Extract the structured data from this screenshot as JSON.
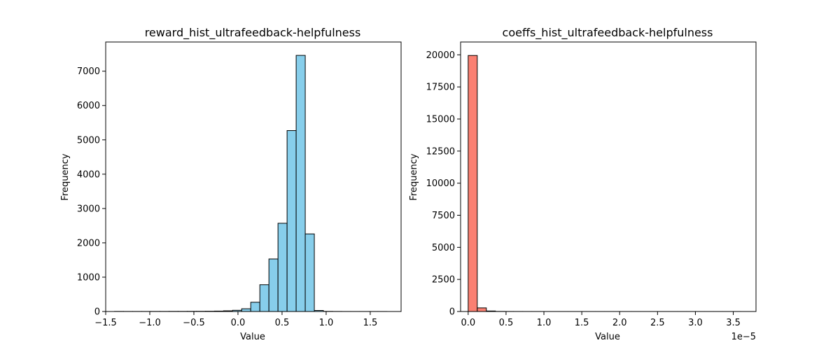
{
  "chart_data": [
    {
      "type": "bar",
      "title": "reward_hist_ultrafeedback-helpfulness",
      "xlabel": "Value",
      "ylabel": "Frequency",
      "bar_color": "#87ceeb",
      "edge_color": "#000000",
      "xlim": [
        -1.5,
        1.85
      ],
      "ylim": [
        0,
        7850
      ],
      "xticks": [
        -1.5,
        -1.0,
        -0.5,
        0.0,
        0.5,
        1.0,
        1.5
      ],
      "xtick_labels": [
        "−1.5",
        "−1.0",
        "−0.5",
        "0.0",
        "0.5",
        "1.0",
        "1.5"
      ],
      "yticks": [
        0,
        1000,
        2000,
        3000,
        4000,
        5000,
        6000,
        7000
      ],
      "ytick_labels": [
        "0",
        "1000",
        "2000",
        "3000",
        "4000",
        "5000",
        "6000",
        "7000"
      ],
      "bin_edges": [
        -1.4,
        -1.297,
        -1.194,
        -1.091,
        -0.988,
        -0.885,
        -0.782,
        -0.679,
        -0.576,
        -0.473,
        -0.37,
        -0.267,
        -0.164,
        -0.061,
        0.042,
        0.145,
        0.248,
        0.351,
        0.454,
        0.557,
        0.66,
        0.763,
        0.866,
        0.969,
        1.072,
        1.175,
        1.278,
        1.381,
        1.484,
        1.587,
        1.69
      ],
      "values": [
        3,
        2,
        2,
        2,
        3,
        3,
        4,
        4,
        5,
        6,
        8,
        12,
        20,
        35,
        80,
        270,
        780,
        1530,
        2570,
        5270,
        7460,
        2260,
        30,
        4,
        2,
        1,
        1,
        1,
        1,
        1
      ]
    },
    {
      "type": "bar",
      "title": "coeffs_hist_ultrafeedback-helpfulness",
      "xlabel": "Value",
      "ylabel": "Frequency",
      "x_offset_label": "1e−5",
      "bar_color": "#fa8072",
      "edge_color": "#000000",
      "xlim": [
        -0.1,
        3.8
      ],
      "ylim": [
        0,
        21000
      ],
      "xticks": [
        0.0,
        0.5,
        1.0,
        1.5,
        2.0,
        2.5,
        3.0,
        3.5
      ],
      "xtick_labels": [
        "0.0",
        "0.5",
        "1.0",
        "1.5",
        "2.0",
        "2.5",
        "3.0",
        "3.5"
      ],
      "yticks": [
        0,
        2500,
        5000,
        7500,
        10000,
        12500,
        15000,
        17500,
        20000
      ],
      "ytick_labels": [
        "0",
        "2500",
        "5000",
        "7500",
        "10000",
        "12500",
        "15000",
        "17500",
        "20000"
      ],
      "bin_edges": [
        0.0,
        0.12,
        0.24,
        0.36,
        0.48,
        0.6,
        0.72,
        0.84,
        0.96,
        1.08,
        1.2,
        1.32,
        1.44,
        1.56,
        1.68,
        1.8,
        1.92,
        2.04,
        2.16,
        2.28,
        2.4,
        2.52,
        2.64,
        2.76,
        2.88,
        3.0,
        3.12,
        3.24,
        3.36,
        3.48,
        3.6
      ],
      "values": [
        19950,
        280,
        40,
        8,
        4,
        3,
        2,
        2,
        1,
        1,
        1,
        1,
        1,
        1,
        1,
        1,
        1,
        1,
        1,
        1,
        1,
        1,
        1,
        1,
        1,
        1,
        1,
        1,
        1,
        1
      ]
    }
  ]
}
